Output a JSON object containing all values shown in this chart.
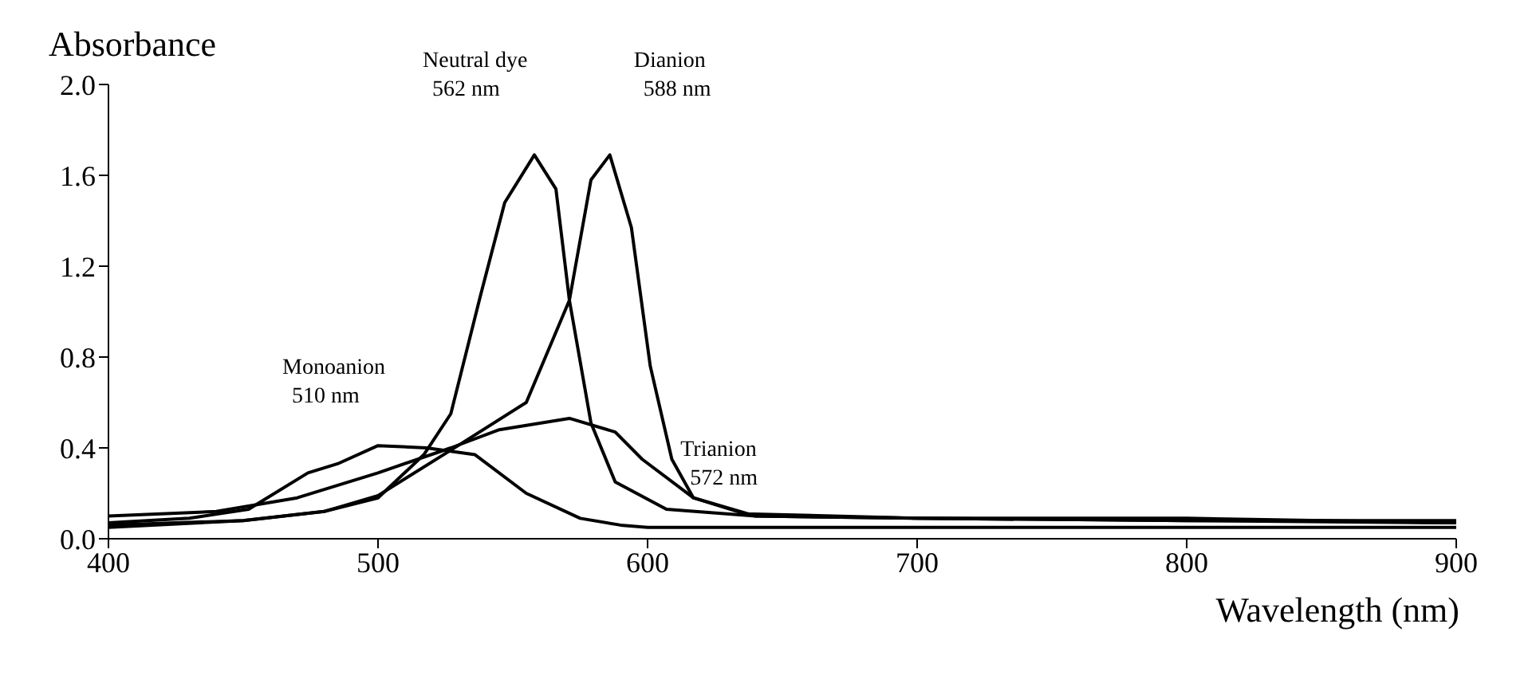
{
  "chart_data": {
    "type": "line",
    "xlabel": "Wavelength (nm)",
    "ylabel": "Absorbance",
    "xlim": [
      400,
      900
    ],
    "ylim": [
      0,
      2
    ],
    "xticks": [
      400,
      500,
      600,
      700,
      800,
      900
    ],
    "yticks": [
      {
        "value": 0,
        "label": "0.0"
      },
      0.4,
      0.8,
      1.2,
      1.6,
      {
        "value": 2,
        "label": "2.0"
      }
    ],
    "grid": false,
    "legend": false,
    "marker": "none",
    "line_style": "solid",
    "series": [
      {
        "color": "#000000",
        "x": [
          400,
          430,
          452,
          474,
          485,
          500,
          518,
          536,
          555,
          575,
          590,
          600,
          650,
          700,
          800,
          900
        ],
        "values": [
          0.07,
          0.09,
          0.13,
          0.29,
          0.33,
          0.41,
          0.4,
          0.37,
          0.2,
          0.09,
          0.06,
          0.05,
          0.05,
          0.05,
          0.05,
          0.05
        ]
      },
      {
        "color": "#000000",
        "x": [
          400,
          440,
          470,
          500,
          527,
          545,
          571,
          588,
          598,
          617,
          636,
          700,
          800,
          900
        ],
        "values": [
          0.1,
          0.12,
          0.18,
          0.29,
          0.4,
          0.48,
          0.53,
          0.47,
          0.35,
          0.18,
          0.11,
          0.09,
          0.08,
          0.08
        ]
      },
      {
        "color": "#000000",
        "x": [
          400,
          450,
          480,
          500,
          517,
          527,
          538,
          547,
          558,
          566,
          571,
          579,
          588,
          607,
          640,
          700,
          800,
          900
        ],
        "values": [
          0.06,
          0.08,
          0.12,
          0.18,
          0.37,
          0.55,
          1.07,
          1.48,
          1.69,
          1.54,
          1.05,
          0.51,
          0.25,
          0.13,
          0.1,
          0.09,
          0.09,
          0.07
        ]
      },
      {
        "color": "#000000",
        "x": [
          400,
          450,
          480,
          500,
          527,
          555,
          571,
          579,
          586,
          594,
          601,
          609,
          617,
          640,
          700,
          800,
          900
        ],
        "values": [
          0.05,
          0.08,
          0.12,
          0.19,
          0.39,
          0.6,
          1.05,
          1.58,
          1.69,
          1.37,
          0.76,
          0.35,
          0.18,
          0.1,
          0.09,
          0.08,
          0.07
        ]
      }
    ],
    "annotations": [
      {
        "text": "Neutral dye\n562 nm",
        "x": 558,
        "y": 1.69
      },
      {
        "text": "Dianion\n588 nm",
        "x": 586,
        "y": 1.69
      },
      {
        "text": "Monoanion\n510 nm",
        "x": 500,
        "y": 0.41
      },
      {
        "text": "Trianion\n572 nm",
        "x": 598,
        "y": 0.35
      }
    ]
  }
}
